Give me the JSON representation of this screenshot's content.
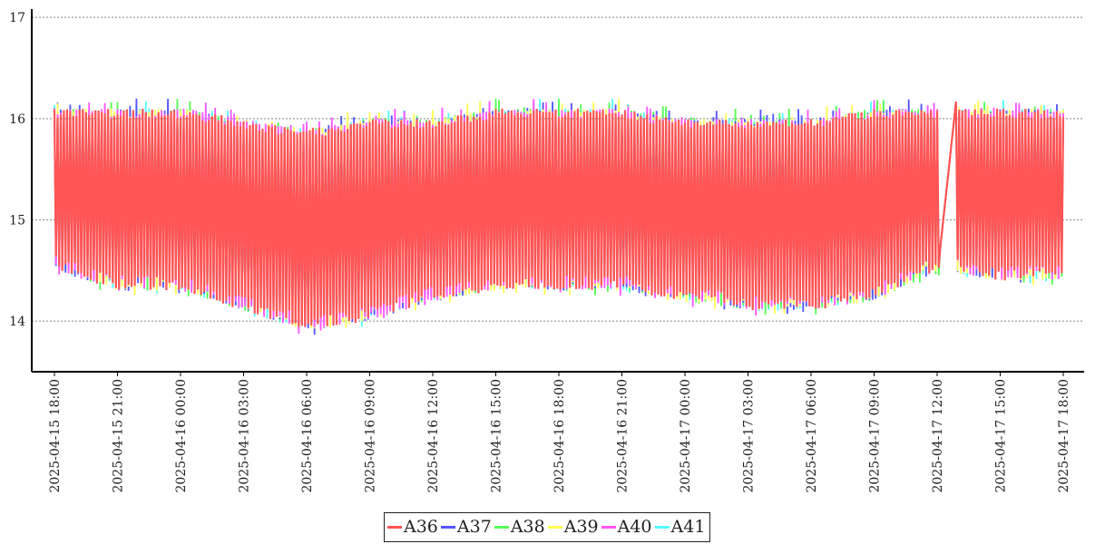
{
  "chart_data": {
    "type": "line",
    "title": "",
    "xlabel": "",
    "ylabel": "",
    "ylim": [
      13.5,
      17.1
    ],
    "y_ticks": [
      "14",
      "15",
      "16",
      "17"
    ],
    "grid": "horizontal dotted",
    "legend_position": "bottom-center",
    "x_range": [
      "2025-04-15 18:00",
      "2025-04-17 18:00"
    ],
    "x_tick_labels": [
      "2025-04-15 18:00",
      "2025-04-15 21:00",
      "2025-04-16 00:00",
      "2025-04-16 03:00",
      "2025-04-16 06:00",
      "2025-04-16 09:00",
      "2025-04-16 12:00",
      "2025-04-16 15:00",
      "2025-04-16 18:00",
      "2025-04-16 21:00",
      "2025-04-17 00:00",
      "2025-04-17 03:00",
      "2025-04-17 06:00",
      "2025-04-17 09:00",
      "2025-04-17 12:00",
      "2025-04-17 15:00",
      "2025-04-17 18:00"
    ],
    "series": [
      {
        "name": "A36",
        "color": "#ff5555",
        "min_approx": 13.9,
        "max_approx": 16.2
      },
      {
        "name": "A37",
        "color": "#5555ff",
        "min_approx": 14.0,
        "max_approx": 16.1
      },
      {
        "name": "A38",
        "color": "#55ff55",
        "min_approx": 14.0,
        "max_approx": 16.1
      },
      {
        "name": "A39",
        "color": "#ffff55",
        "min_approx": 14.0,
        "max_approx": 16.3
      },
      {
        "name": "A40",
        "color": "#ff55ff",
        "min_approx": 14.0,
        "max_approx": 16.2
      },
      {
        "name": "A41",
        "color": "#55ffff",
        "min_approx": 14.0,
        "max_approx": 16.1
      }
    ],
    "description_values": {
      "A36_envelope": [
        {
          "x": "2025-04-15 18:00",
          "low": 14.5,
          "high": 16.1
        },
        {
          "x": "2025-04-15 21:00",
          "low": 14.3,
          "high": 16.1
        },
        {
          "x": "2025-04-16 00:00",
          "low": 14.3,
          "high": 16.1
        },
        {
          "x": "2025-04-16 03:00",
          "low": 14.1,
          "high": 16.0
        },
        {
          "x": "2025-04-16 06:00",
          "low": 13.9,
          "high": 15.9
        },
        {
          "x": "2025-04-16 09:00",
          "low": 14.0,
          "high": 16.0
        },
        {
          "x": "2025-04-16 12:00",
          "low": 14.2,
          "high": 16.0
        },
        {
          "x": "2025-04-16 15:00",
          "low": 14.3,
          "high": 16.1
        },
        {
          "x": "2025-04-16 18:00",
          "low": 14.3,
          "high": 16.1
        },
        {
          "x": "2025-04-16 21:00",
          "low": 14.3,
          "high": 16.1
        },
        {
          "x": "2025-04-17 00:00",
          "low": 14.2,
          "high": 16.0
        },
        {
          "x": "2025-04-17 03:00",
          "low": 14.1,
          "high": 16.0
        },
        {
          "x": "2025-04-17 06:00",
          "low": 14.1,
          "high": 16.0
        },
        {
          "x": "2025-04-17 09:00",
          "low": 14.2,
          "high": 16.1
        },
        {
          "x": "2025-04-17 12:00",
          "low": 14.5,
          "high": 16.1
        },
        {
          "x": "2025-04-17 15:00",
          "low": 14.4,
          "high": 16.1
        },
        {
          "x": "2025-04-17 18:00",
          "low": 14.4,
          "high": 16.1
        }
      ]
    }
  }
}
